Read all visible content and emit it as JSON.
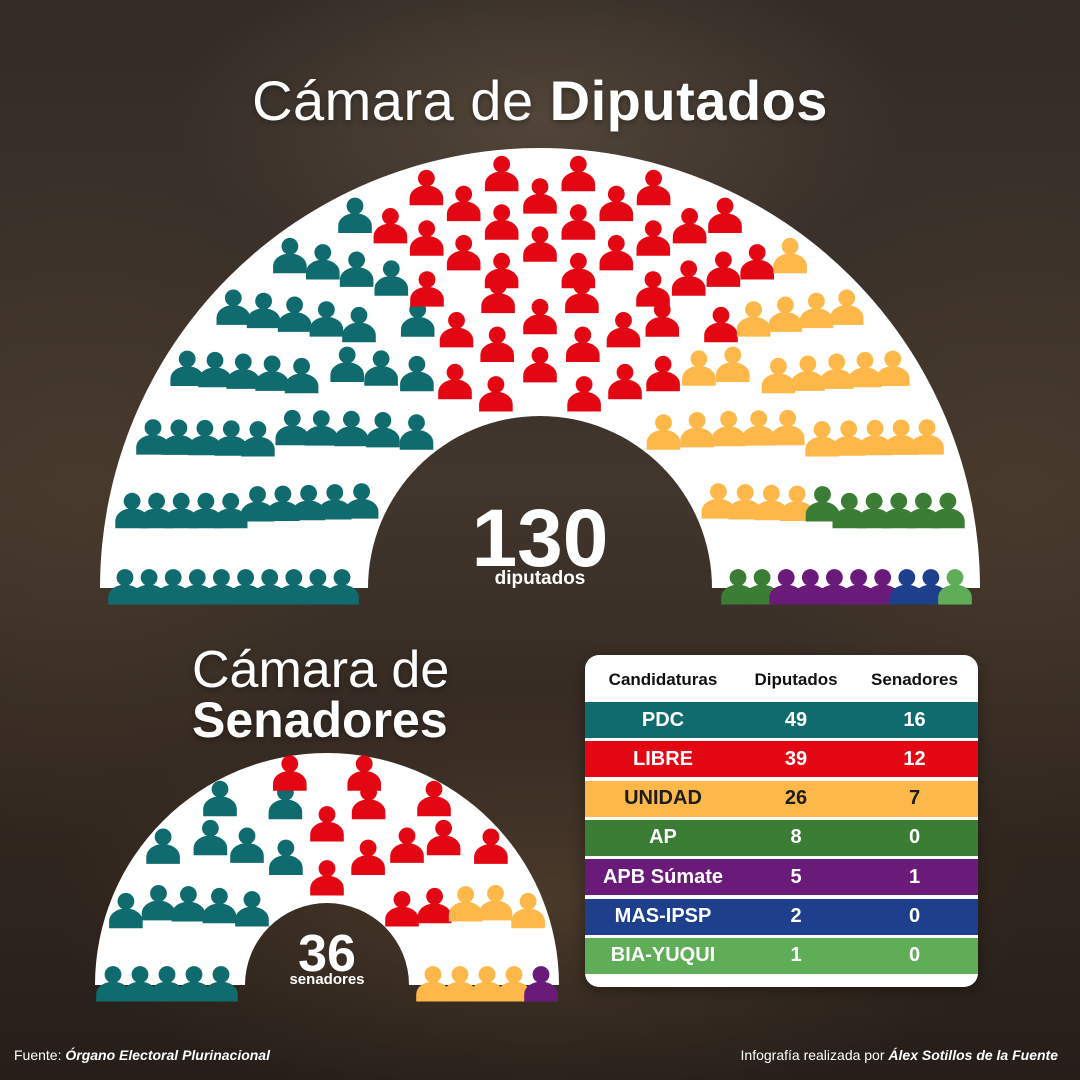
{
  "titles": {
    "diputados_prefix": "Cámara de",
    "diputados_bold": "Diputados",
    "senadores_prefix": "Cámara de",
    "senadores_bold": "Senadores"
  },
  "totals": {
    "diputados_number": "130",
    "diputados_word": "diputados",
    "senadores_number": "36",
    "senadores_word": "senadores"
  },
  "table": {
    "headers": [
      "Candidaturas",
      "Diputados",
      "Senadores"
    ]
  },
  "chart_data": [
    {
      "type": "parliament",
      "chamber": "Cámara de Diputados",
      "total": 130,
      "series": [
        {
          "name": "PDC",
          "value": 49,
          "color": "#0f6b6e"
        },
        {
          "name": "LIBRE",
          "value": 39,
          "color": "#e30613"
        },
        {
          "name": "UNIDAD",
          "value": 26,
          "color": "#fdb849"
        },
        {
          "name": "AP",
          "value": 8,
          "color": "#3b7d34"
        },
        {
          "name": "APB Súmate",
          "value": 5,
          "color": "#6a1b7a"
        },
        {
          "name": "MAS-IPSP",
          "value": 2,
          "color": "#1d3f8c"
        },
        {
          "name": "BIA-YUQUI",
          "value": 1,
          "color": "#5fad57"
        }
      ]
    },
    {
      "type": "parliament",
      "chamber": "Cámara de Senadores",
      "total": 36,
      "series": [
        {
          "name": "PDC",
          "value": 16,
          "color": "#0f6b6e"
        },
        {
          "name": "LIBRE",
          "value": 12,
          "color": "#e30613"
        },
        {
          "name": "UNIDAD",
          "value": 7,
          "color": "#fdb849"
        },
        {
          "name": "AP",
          "value": 0,
          "color": "#3b7d34"
        },
        {
          "name": "APB Súmate",
          "value": 1,
          "color": "#6a1b7a"
        },
        {
          "name": "MAS-IPSP",
          "value": 0,
          "color": "#1d3f8c"
        },
        {
          "name": "BIA-YUQUI",
          "value": 0,
          "color": "#5fad57"
        }
      ]
    }
  ],
  "footer": {
    "source_label": "Fuente:",
    "source_name": "Órgano Electoral Plurinacional",
    "credit_label": "Infografía realizada por",
    "credit_name": "Álex Sotillos de la Fuente"
  }
}
